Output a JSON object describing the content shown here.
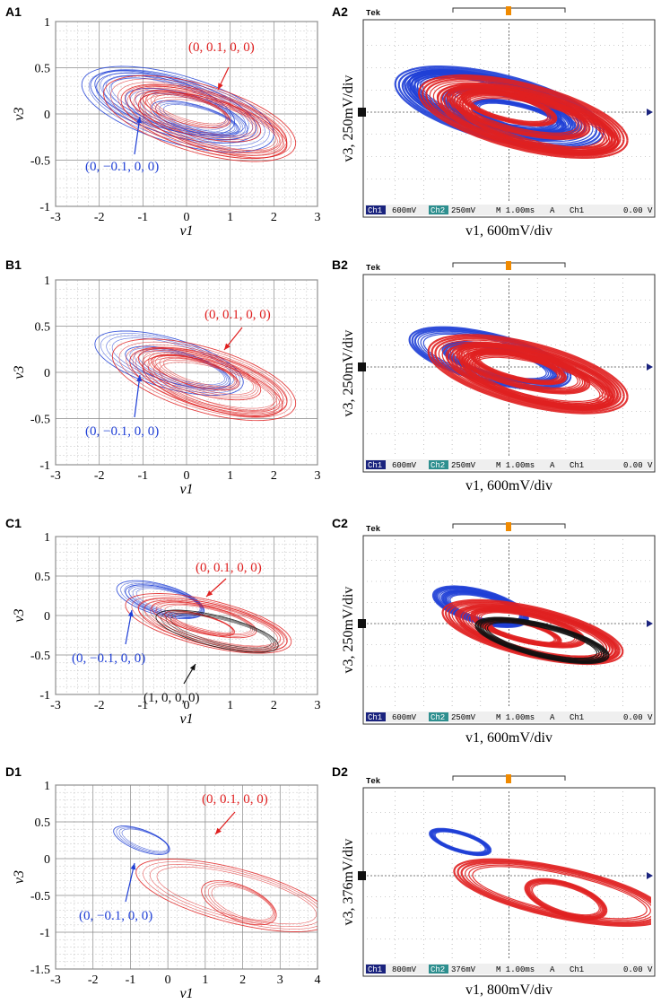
{
  "colors": {
    "blue": "#1f3fd6",
    "red": "#e02020",
    "black": "#111111",
    "grid": "#b8b8b8",
    "scope_bg": "#ffffff",
    "hud_bg": "#d8d8d8",
    "ch1": "#1a237e",
    "orange": "#f08a00"
  },
  "panels": [
    {
      "id": "A",
      "sim_label": "A1",
      "scope_label": "A2",
      "chart_data": {
        "type": "scatter",
        "xlabel": "v1",
        "ylabel": "v3",
        "xlim": [
          -3,
          3
        ],
        "ylim": [
          -1,
          1
        ],
        "xticks": [
          "-3",
          "-2",
          "-1",
          "0",
          "1",
          "2",
          "3"
        ],
        "yticks": [
          "1",
          "0.5",
          "0",
          "-0.5",
          "-1"
        ],
        "series": [
          {
            "name": "(0, −0.1, 0, 0)",
            "color": "blue",
            "ellipses": [
              [
                -0.2,
                0.05,
                2.2,
                0.38,
                -20
              ],
              [
                -0.3,
                0.08,
                1.9,
                0.32,
                -20
              ],
              [
                0.0,
                0.0,
                1.4,
                0.22,
                -20
              ],
              [
                -0.5,
                0.12,
                1.6,
                0.28,
                -21
              ],
              [
                0.2,
                -0.05,
                1.0,
                0.15,
                -20
              ]
            ]
          },
          {
            "name": "(0, 0.1, 0, 0)",
            "color": "red",
            "ellipses": [
              [
                0.3,
                -0.05,
                2.2,
                0.38,
                -20
              ],
              [
                0.4,
                -0.08,
                1.9,
                0.33,
                -20
              ],
              [
                0.2,
                0.0,
                1.5,
                0.24,
                -20
              ],
              [
                0.6,
                -0.12,
                1.7,
                0.28,
                -21
              ],
              [
                0.0,
                0.05,
                1.0,
                0.16,
                -20
              ]
            ]
          }
        ],
        "annotations": [
          {
            "text": "(0, 0.1, 0, 0)",
            "color": "red"
          },
          {
            "text": "(0, −0.1, 0, 0)",
            "color": "blue"
          }
        ]
      },
      "scope": {
        "ylabel": "v3, 250mV/div",
        "xlabel": "v1, 600mV/div",
        "hud": [
          "Ch1",
          "600mV",
          "Ch2",
          "250mV",
          "M 1.00ms",
          "A",
          "Ch1",
          "0.00 V"
        ],
        "brand": "Tek"
      }
    },
    {
      "id": "B",
      "sim_label": "B1",
      "scope_label": "B2",
      "chart_data": {
        "type": "scatter",
        "xlabel": "v1",
        "ylabel": "v3",
        "xlim": [
          -3,
          3
        ],
        "ylim": [
          -1,
          1
        ],
        "xticks": [
          "-3",
          "-2",
          "-1",
          "0",
          "1",
          "2",
          "3"
        ],
        "yticks": [
          "1",
          "0.5",
          "0",
          "-0.5",
          "-1"
        ],
        "series": [
          {
            "name": "(0, −0.1, 0, 0)",
            "color": "blue",
            "ellipses": [
              [
                -0.4,
                0.1,
                1.7,
                0.28,
                -20
              ],
              [
                -0.2,
                0.05,
                1.2,
                0.18,
                -20
              ]
            ]
          },
          {
            "name": "(0, 0.1, 0, 0)",
            "color": "red",
            "ellipses": [
              [
                0.4,
                -0.08,
                2.1,
                0.36,
                -20
              ],
              [
                0.5,
                -0.1,
                1.8,
                0.3,
                -20
              ],
              [
                0.3,
                -0.02,
                1.4,
                0.22,
                -20
              ],
              [
                0.6,
                -0.15,
                1.6,
                0.26,
                -21
              ],
              [
                0.2,
                0.0,
                1.0,
                0.15,
                -20
              ]
            ]
          }
        ],
        "annotations": [
          {
            "text": "(0, 0.1, 0, 0)",
            "color": "red"
          },
          {
            "text": "(0, −0.1, 0, 0)",
            "color": "blue"
          }
        ]
      },
      "scope": {
        "ylabel": "v3, 250mV/div",
        "xlabel": "v1, 600mV/div",
        "hud": [
          "Ch1",
          "600mV",
          "Ch2",
          "250mV",
          "M 1.00ms",
          "A",
          "Ch1",
          "0.00 V"
        ],
        "brand": "Tek"
      }
    },
    {
      "id": "C",
      "sim_label": "C1",
      "scope_label": "C2",
      "chart_data": {
        "type": "scatter",
        "xlabel": "v1",
        "ylabel": "v3",
        "xlim": [
          -3,
          3
        ],
        "ylim": [
          -1,
          1
        ],
        "xticks": [
          "-3",
          "-2",
          "-1",
          "0",
          "1",
          "2",
          "3"
        ],
        "yticks": [
          "1",
          "0.5",
          "0",
          "-0.5",
          "-1"
        ],
        "series": [
          {
            "name": "(0, −0.1, 0, 0)",
            "color": "blue",
            "ellipses": [
              [
                -0.6,
                0.2,
                1.0,
                0.2,
                -22
              ],
              [
                -0.5,
                0.18,
                0.9,
                0.17,
                -22
              ]
            ]
          },
          {
            "name": "(0, 0.1, 0, 0)",
            "color": "red",
            "ellipses": [
              [
                0.5,
                -0.1,
                1.9,
                0.3,
                -20
              ],
              [
                0.6,
                -0.12,
                1.7,
                0.27,
                -20
              ],
              [
                0.4,
                -0.05,
                1.2,
                0.18,
                -20
              ],
              [
                0.3,
                -0.1,
                0.8,
                0.12,
                -22
              ]
            ]
          },
          {
            "name": "(1, 0, 0, 0)",
            "color": "black",
            "ellipses": [
              [
                0.7,
                -0.2,
                1.4,
                0.2,
                -21
              ]
            ]
          }
        ],
        "annotations": [
          {
            "text": "(0, 0.1, 0, 0)",
            "color": "red"
          },
          {
            "text": "(0, −0.1, 0, 0)",
            "color": "blue"
          },
          {
            "text": "(1, 0, 0, 0)",
            "color": "black"
          }
        ]
      },
      "scope": {
        "ylabel": "v3, 250mV/div",
        "xlabel": "v1, 600mV/div",
        "hud": [
          "Ch1",
          "600mV",
          "Ch2",
          "250mV",
          "M 1.00ms",
          "A",
          "Ch1",
          "0.00 V"
        ],
        "brand": "Tek"
      }
    },
    {
      "id": "D",
      "sim_label": "D1",
      "scope_label": "D2",
      "chart_data": {
        "type": "scatter",
        "xlabel": "v1",
        "ylabel": "v3",
        "xlim": [
          -3,
          4
        ],
        "ylim": [
          -1.5,
          1
        ],
        "xticks": [
          "-3",
          "-2",
          "-1",
          "0",
          "1",
          "2",
          "3",
          "4"
        ],
        "yticks": [
          "1",
          "0.5",
          "0",
          "-0.5",
          "-1",
          "-1.5"
        ],
        "series": [
          {
            "name": "(0, −0.1, 0, 0)",
            "color": "blue",
            "ellipses": [
              [
                -0.7,
                0.25,
                0.75,
                0.15,
                -30
              ]
            ]
          },
          {
            "name": "(0, 0.1, 0, 0)",
            "color": "red",
            "ellipses": [
              [
                1.75,
                -0.5,
                2.6,
                0.38,
                -23
              ],
              [
                1.9,
                -0.6,
                1.0,
                0.25,
                -30
              ]
            ]
          }
        ],
        "annotations": [
          {
            "text": "(0, 0.1, 0, 0)",
            "color": "red"
          },
          {
            "text": "(0, −0.1, 0, 0)",
            "color": "blue"
          }
        ]
      },
      "scope": {
        "ylabel": "v3, 376mV/div",
        "xlabel": "v1, 800mV/div",
        "hud": [
          "Ch1",
          "800mV",
          "Ch2",
          "376mV",
          "M 1.00ms",
          "A",
          "Ch1",
          "0.00 V"
        ],
        "brand": "Tek"
      }
    }
  ]
}
